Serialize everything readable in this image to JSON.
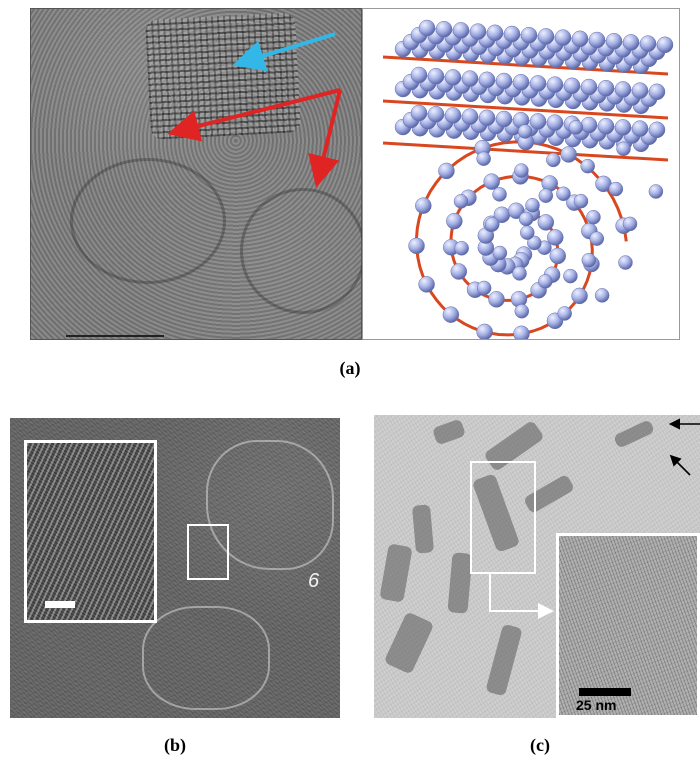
{
  "figure": {
    "panel_a": {
      "label": "(a)"
    },
    "panel_b": {
      "label": "(b)",
      "annotation": "6"
    },
    "panel_c": {
      "label": "(c)",
      "scale_bar_text": "25 nm"
    }
  },
  "colors": {
    "arrow_blue": "#33b7e6",
    "arrow_red": "#e02424",
    "sphere": "#a5b1e5",
    "strand": "#d9471f"
  }
}
